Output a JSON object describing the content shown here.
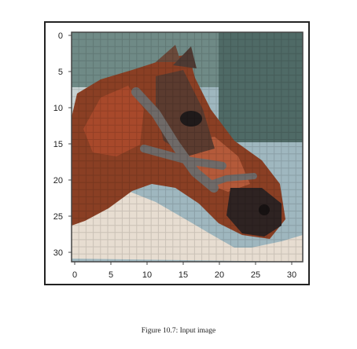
{
  "figure": {
    "caption": "Figure 10.7: Input image",
    "image_description_icon": "horse-head-photo-icon"
  },
  "axes": {
    "x_ticks": [
      "0",
      "5",
      "10",
      "15",
      "20",
      "25",
      "30"
    ],
    "y_ticks": [
      "0",
      "5",
      "10",
      "15",
      "20",
      "25",
      "30"
    ]
  },
  "colors": {
    "frame": "#222222",
    "axis": "#444444",
    "bg_sky": "#9fb7bf",
    "bg_dark": "#5c6f72",
    "horse_brown": "#8a3f24",
    "horse_red": "#a8492b",
    "horse_dark": "#3b2a24",
    "bridle_gray": "#6f6a68",
    "ground_light": "#e7ddd1"
  }
}
